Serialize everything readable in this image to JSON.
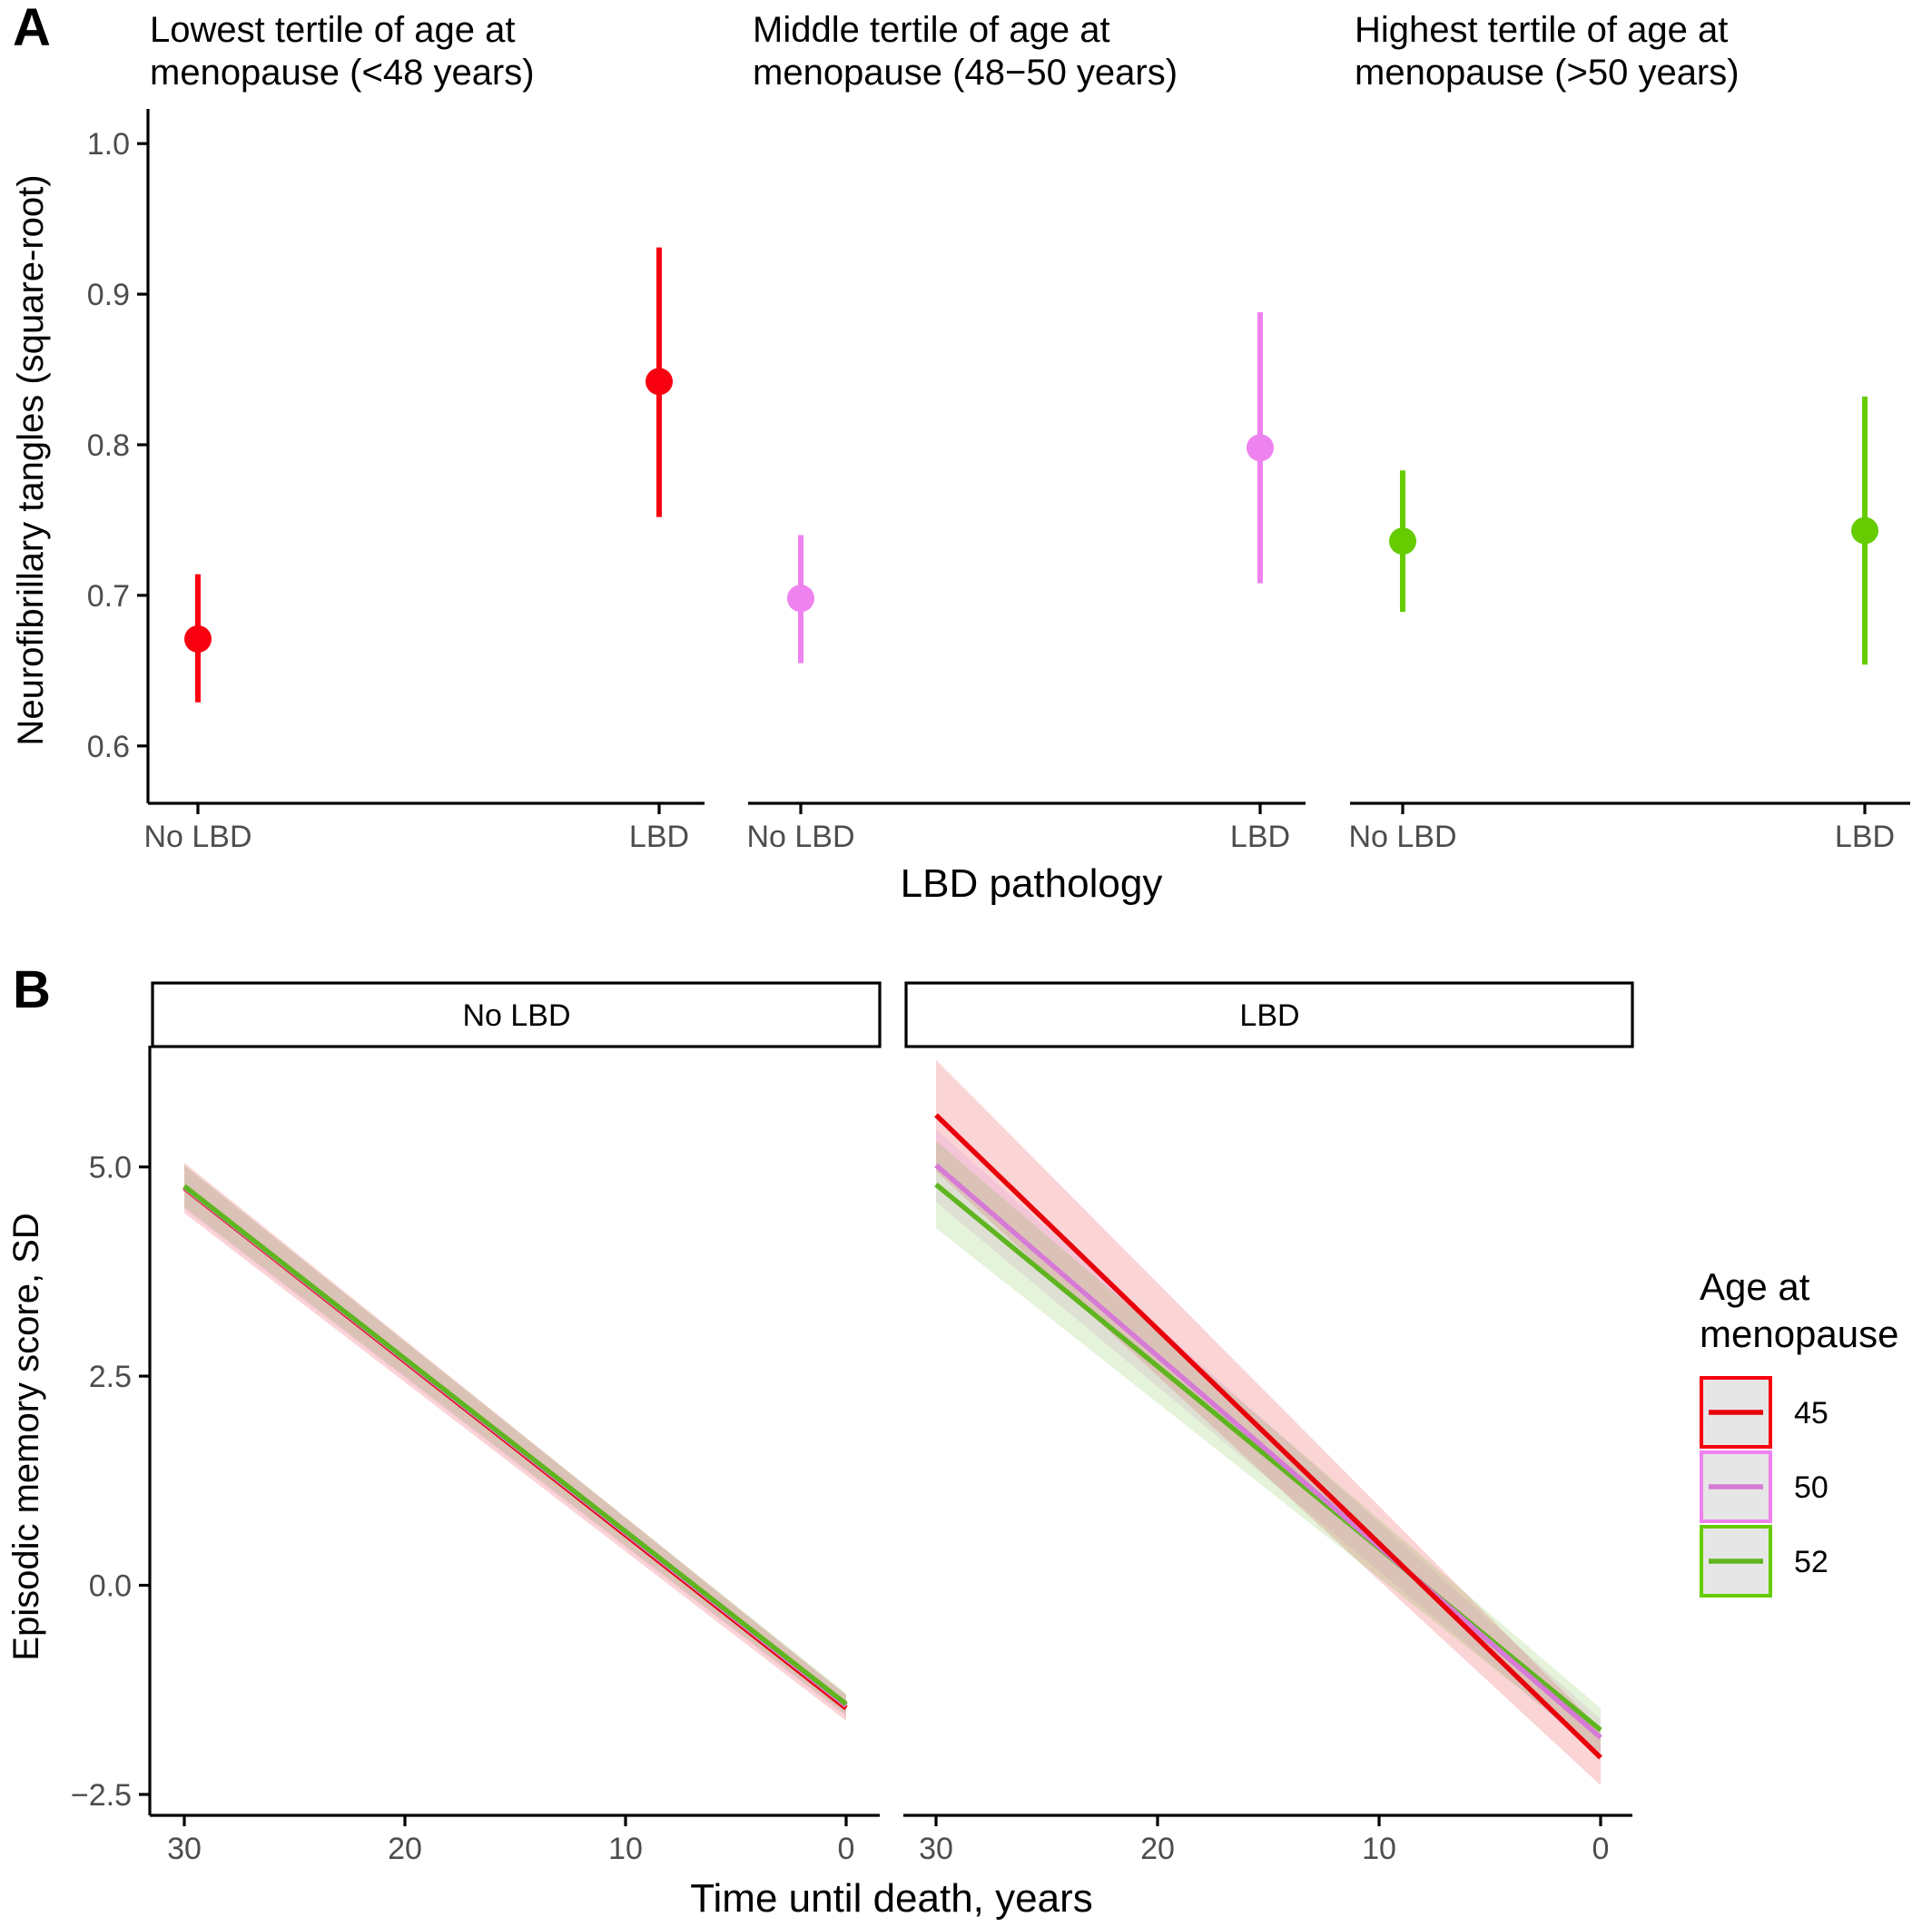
{
  "panel_labels": {
    "a": "A",
    "b": "B"
  },
  "colors": {
    "t1": "#f8000f",
    "t2": "#ee82ee",
    "t3": "#66cc00",
    "line45": "#e8000b",
    "line50": "#d67ad6",
    "line52": "#5fb520"
  },
  "chart_data": [
    {
      "type": "scatter",
      "ylabel": "Neurofibrillary tangles (square-root)",
      "xlabel": "LBD pathology",
      "ylim": [
        0.58,
        1.02
      ],
      "yticks": [
        "0.6",
        "0.7",
        "0.8",
        "0.9",
        "1.0"
      ],
      "categories": [
        "No LBD",
        "LBD"
      ],
      "facets": [
        {
          "title": "Lowest tertile of age at menopause (<48 years)",
          "title_lines": [
            "Lowest tertile of age at",
            "menopause (<48 years)"
          ],
          "color_key": "t1",
          "points": [
            {
              "x": "No LBD",
              "y": 0.671,
              "lo": 0.629,
              "hi": 0.714
            },
            {
              "x": "LBD",
              "y": 0.842,
              "lo": 0.752,
              "hi": 0.931
            }
          ]
        },
        {
          "title": "Middle tertile of age at menopause (48–50 years)",
          "title_lines": [
            "Middle tertile of age at",
            "menopause (48−50 years)"
          ],
          "color_key": "t2",
          "points": [
            {
              "x": "No LBD",
              "y": 0.698,
              "lo": 0.655,
              "hi": 0.74
            },
            {
              "x": "LBD",
              "y": 0.798,
              "lo": 0.708,
              "hi": 0.888
            }
          ]
        },
        {
          "title": "Highest tertile of age at menopause (>50 years)",
          "title_lines": [
            "Highest tertile of age at",
            "menopause (>50 years)"
          ],
          "color_key": "t3",
          "points": [
            {
              "x": "No LBD",
              "y": 0.736,
              "lo": 0.689,
              "hi": 0.783
            },
            {
              "x": "LBD",
              "y": 0.743,
              "lo": 0.654,
              "hi": 0.832
            }
          ]
        }
      ]
    },
    {
      "type": "line",
      "xlabel": "Time until death, years",
      "ylabel": "Episodic memory score, SD",
      "xlim": [
        31.5,
        -1.5
      ],
      "ylim": [
        -2.75,
        6.45
      ],
      "xticks": [
        30,
        20,
        10,
        0
      ],
      "yticks": [
        5.0,
        2.5,
        0.0,
        -2.5
      ],
      "ytick_labels": [
        "5.0",
        "2.5",
        "0.0",
        "−2.5"
      ],
      "legend": {
        "title_lines": [
          "Age at",
          "menopause"
        ],
        "position": "right"
      },
      "series_keys": [
        "45",
        "50",
        "52"
      ],
      "facets": [
        {
          "title": "No LBD",
          "series": [
            {
              "name": "45",
              "color_key": "line45",
              "x": [
                30,
                0
              ],
              "y": [
                4.75,
                -1.47
              ],
              "band_lo": [
                4.45,
                -1.62
              ],
              "band_hi": [
                5.05,
                -1.31
              ]
            },
            {
              "name": "50",
              "color_key": "line50",
              "x": [
                30,
                0
              ],
              "y": [
                4.76,
                -1.44
              ],
              "band_lo": [
                4.5,
                -1.57
              ],
              "band_hi": [
                5.02,
                -1.31
              ]
            },
            {
              "name": "52",
              "color_key": "line52",
              "x": [
                30,
                0
              ],
              "y": [
                4.77,
                -1.42
              ],
              "band_lo": [
                4.52,
                -1.55
              ],
              "band_hi": [
                5.02,
                -1.29
              ]
            }
          ]
        },
        {
          "title": "LBD",
          "series": [
            {
              "name": "45",
              "color_key": "line45",
              "x": [
                30,
                0
              ],
              "y": [
                5.62,
                -2.06
              ],
              "band_lo": [
                4.95,
                -2.39
              ],
              "band_hi": [
                6.28,
                -1.72
              ]
            },
            {
              "name": "50",
              "color_key": "line50",
              "x": [
                30,
                0
              ],
              "y": [
                5.02,
                -1.82
              ],
              "band_lo": [
                4.58,
                -2.04
              ],
              "band_hi": [
                5.45,
                -1.6
              ]
            },
            {
              "name": "52",
              "color_key": "line52",
              "x": [
                30,
                0
              ],
              "y": [
                4.79,
                -1.73
              ],
              "band_lo": [
                4.27,
                -2.0
              ],
              "band_hi": [
                5.31,
                -1.47
              ]
            }
          ]
        }
      ]
    }
  ]
}
